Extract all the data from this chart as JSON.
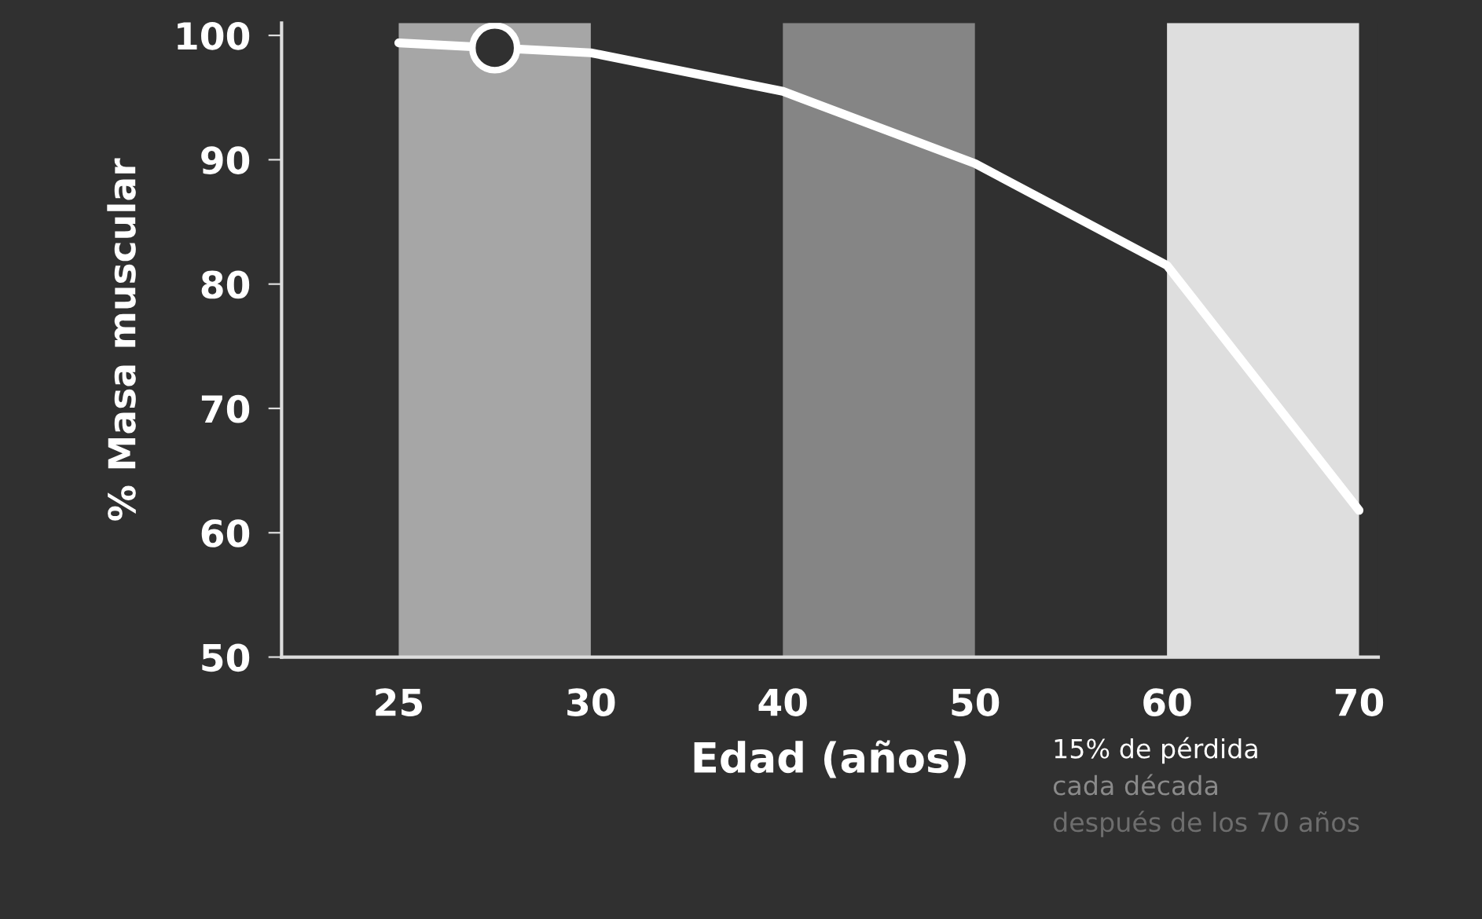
{
  "chart_data": {
    "type": "line",
    "xlabel": "Edad (años)",
    "ylabel": "% Masa muscular",
    "categories": [
      "25",
      "30",
      "40",
      "50",
      "60",
      "70"
    ],
    "ylim": [
      50,
      101
    ],
    "yticks": [
      50,
      60,
      70,
      80,
      90,
      100
    ],
    "bands": [
      {
        "axis": "x",
        "from": "25",
        "to": "30",
        "color": "#a6a6a6"
      },
      {
        "axis": "x",
        "from": "40",
        "to": "50",
        "color": "#858585"
      },
      {
        "axis": "x",
        "from": "60",
        "to": "70",
        "color": "#dedede"
      }
    ],
    "series": [
      {
        "color": "#ffffff",
        "values": [
          99.4,
          98.6,
          95.5,
          89.7,
          81.5,
          61.8
        ]
      }
    ],
    "annotations": [
      "15% de pérdida",
      "cada década",
      "después de los 70 años"
    ],
    "grid": false,
    "legend": false
  }
}
